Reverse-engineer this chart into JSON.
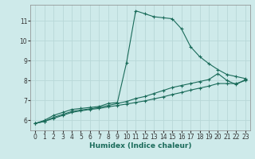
{
  "xlabel": "Humidex (Indice chaleur)",
  "bg_color": "#ceeaea",
  "line_color": "#1a6b5a",
  "grid_color": "#b8d8d8",
  "xlim": [
    -0.5,
    23.5
  ],
  "ylim": [
    5.5,
    11.8
  ],
  "xticks": [
    0,
    1,
    2,
    3,
    4,
    5,
    6,
    7,
    8,
    9,
    10,
    11,
    12,
    13,
    14,
    15,
    16,
    17,
    18,
    19,
    20,
    21,
    22,
    23
  ],
  "yticks": [
    6,
    7,
    8,
    9,
    10,
    11
  ],
  "series": [
    {
      "x": [
        0,
        1,
        2,
        3,
        4,
        5,
        6,
        7,
        8,
        9,
        10,
        11,
        12,
        13,
        14,
        15,
        16,
        17,
        18,
        19,
        20,
        21,
        22,
        23
      ],
      "y": [
        5.85,
        6.0,
        6.25,
        6.4,
        6.55,
        6.6,
        6.65,
        6.7,
        6.85,
        6.9,
        8.9,
        11.5,
        11.35,
        11.2,
        11.15,
        11.1,
        10.6,
        9.7,
        9.2,
        8.85,
        8.55,
        8.3,
        8.2,
        8.1
      ]
    },
    {
      "x": [
        0,
        1,
        2,
        3,
        4,
        5,
        6,
        7,
        8,
        9,
        10,
        11,
        12,
        13,
        14,
        15,
        16,
        17,
        18,
        19,
        20,
        21,
        22,
        23
      ],
      "y": [
        5.85,
        5.95,
        6.15,
        6.3,
        6.45,
        6.52,
        6.58,
        6.65,
        6.75,
        6.85,
        6.95,
        7.1,
        7.2,
        7.35,
        7.5,
        7.65,
        7.75,
        7.85,
        7.95,
        8.05,
        8.35,
        8.0,
        7.8,
        8.05
      ]
    },
    {
      "x": [
        0,
        1,
        2,
        3,
        4,
        5,
        6,
        7,
        8,
        9,
        10,
        11,
        12,
        13,
        14,
        15,
        16,
        17,
        18,
        19,
        20,
        21,
        22,
        23
      ],
      "y": [
        5.85,
        5.95,
        6.1,
        6.25,
        6.4,
        6.48,
        6.55,
        6.6,
        6.68,
        6.75,
        6.82,
        6.9,
        6.98,
        7.08,
        7.18,
        7.3,
        7.4,
        7.52,
        7.62,
        7.72,
        7.85,
        7.85,
        7.85,
        8.0
      ]
    }
  ]
}
